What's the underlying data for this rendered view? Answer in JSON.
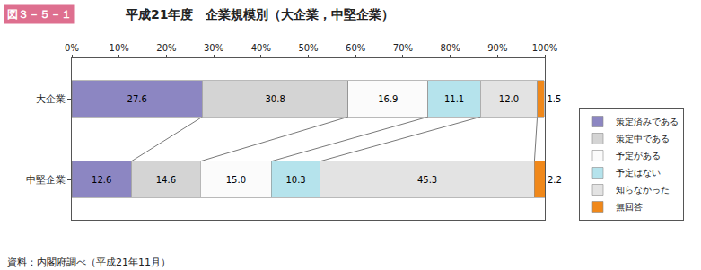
{
  "chart_data": {
    "type": "bar",
    "orientation": "horizontal",
    "stacked": true,
    "title": "平成21年度　企業規模別（大企業，中堅企業）",
    "annotations": [
      "図３－５－１",
      "資料：内閣府調べ（平成21年11月）"
    ],
    "categories": [
      "大企業",
      "中堅企業"
    ],
    "series": [
      {
        "name": "策定済みである",
        "color": "#8c86c2",
        "values": [
          27.6,
          12.6
        ],
        "value_labels": [
          "27.6",
          "12.6"
        ]
      },
      {
        "name": "策定中である",
        "color": "#d4d4d4",
        "values": [
          30.8,
          14.6
        ],
        "value_labels": [
          "30.8",
          "14.6"
        ]
      },
      {
        "name": "予定がある",
        "color": "#fbfbfb",
        "values": [
          16.9,
          15.0
        ],
        "value_labels": [
          "16.9",
          "15.0"
        ]
      },
      {
        "name": "予定はない",
        "color": "#b5e3ec",
        "values": [
          11.1,
          10.3
        ],
        "value_labels": [
          "11.1",
          "10.3"
        ]
      },
      {
        "name": "知らなかった",
        "color": "#e3e3e3",
        "values": [
          12.0,
          45.3
        ],
        "value_labels": [
          "12.0",
          "45.3"
        ]
      },
      {
        "name": "無回答",
        "color": "#f0881a",
        "values": [
          1.5,
          2.2
        ],
        "value_labels": [
          "1.5",
          "2.2"
        ]
      }
    ],
    "xlim": [
      0,
      100
    ],
    "xticks": [
      {
        "value": 0,
        "label": "0%"
      },
      {
        "value": 10,
        "label": "10%"
      },
      {
        "value": 20,
        "label": "20%"
      },
      {
        "value": 30,
        "label": "30%"
      },
      {
        "value": 40,
        "label": "40%"
      },
      {
        "value": 50,
        "label": "50%"
      },
      {
        "value": 60,
        "label": "60%"
      },
      {
        "value": 70,
        "label": "70%"
      },
      {
        "value": 80,
        "label": "80%"
      },
      {
        "value": 90,
        "label": "90%"
      },
      {
        "value": 100,
        "label": "100%"
      }
    ],
    "grid": false,
    "legend": "right",
    "data_labels": true
  }
}
